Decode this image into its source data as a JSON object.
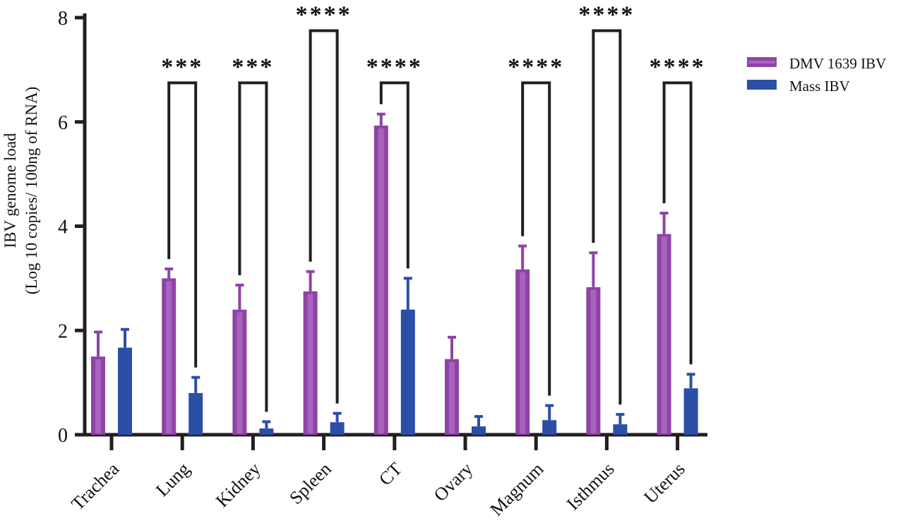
{
  "colors": {
    "dmv": "#8E44A4",
    "dmv_inner": "#A963BE",
    "mass": "#2B4FA6",
    "axis": "#231F20"
  },
  "chart_data": {
    "type": "bar",
    "title": "",
    "xlabel": "",
    "ylabel_lines": [
      "IBV genome load",
      "(Log 10 copies/ 100ng of RNA)"
    ],
    "ylim": [
      0,
      8
    ],
    "yticks": [
      "0",
      "2",
      "4",
      "6",
      "8"
    ],
    "categories": [
      "Trachea",
      "Lung",
      "Kidney",
      "Spleen",
      "CT",
      "Ovary",
      "Magnum",
      "Isthmus",
      "Uterus"
    ],
    "series": [
      {
        "name": "DMV 1639 IBV",
        "values": [
          1.5,
          3.0,
          2.4,
          2.75,
          5.93,
          1.45,
          3.17,
          2.83,
          3.85
        ],
        "errors": [
          0.47,
          0.18,
          0.47,
          0.38,
          0.22,
          0.42,
          0.45,
          0.66,
          0.4
        ]
      },
      {
        "name": "Mass IBV",
        "values": [
          1.67,
          0.8,
          0.12,
          0.24,
          2.4,
          0.16,
          0.28,
          0.2,
          0.89
        ],
        "errors": [
          0.35,
          0.3,
          0.13,
          0.17,
          0.6,
          0.19,
          0.28,
          0.19,
          0.27
        ]
      }
    ],
    "legend": [
      "DMV 1639 IBV",
      "Mass IBV"
    ],
    "legend_position": "top-right",
    "significance": [
      {
        "category": "Lung",
        "label": "***",
        "line_y": 6.75
      },
      {
        "category": "Kidney",
        "label": "***",
        "line_y": 6.75
      },
      {
        "category": "Spleen",
        "label": "****",
        "line_y": 7.75
      },
      {
        "category": "CT",
        "label": "****",
        "line_y": 6.75
      },
      {
        "category": "Magnum",
        "label": "****",
        "line_y": 6.75
      },
      {
        "category": "Isthmus",
        "label": "****",
        "line_y": 7.75
      },
      {
        "category": "Uterus",
        "label": "****",
        "line_y": 6.75
      }
    ]
  }
}
